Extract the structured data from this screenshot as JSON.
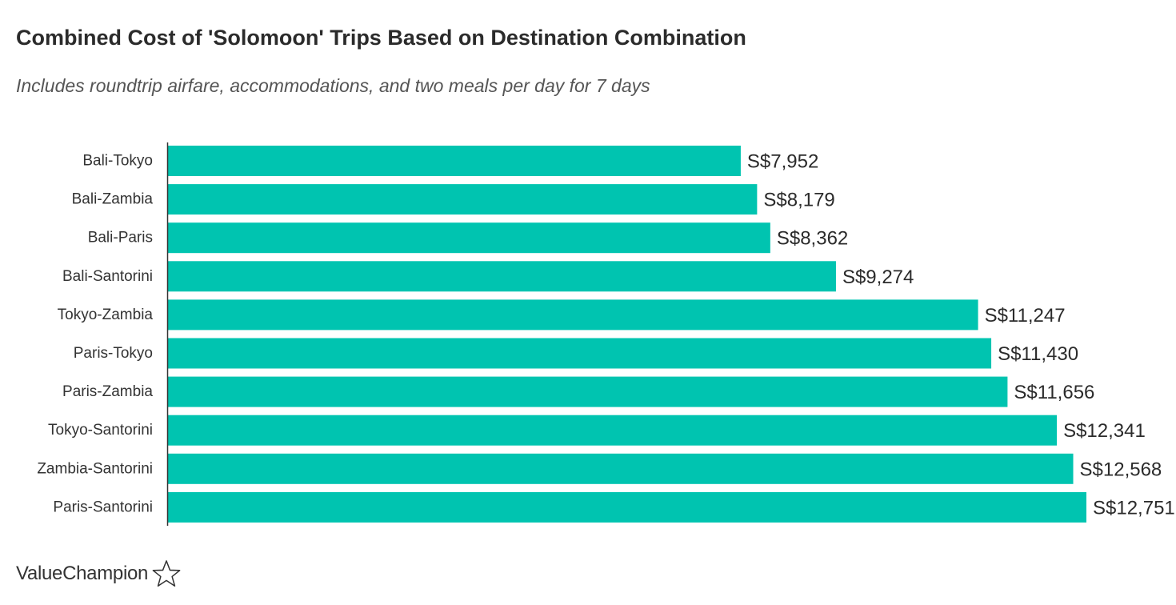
{
  "chart_data": {
    "type": "bar",
    "orientation": "horizontal",
    "title": "Combined Cost of 'Solomoon' Trips Based on Destination Combination",
    "subtitle": "Includes roundtrip airfare, accommodations, and two meals per day for 7 days",
    "categories": [
      "Bali-Tokyo",
      "Bali-Zambia",
      "Bali-Paris",
      "Bali-Santorini",
      "Tokyo-Zambia",
      "Paris-Tokyo",
      "Paris-Zambia",
      "Tokyo-Santorini",
      "Zambia-Santorini",
      "Paris-Santorini"
    ],
    "values": [
      7952,
      8179,
      8362,
      9274,
      11247,
      11430,
      11656,
      12341,
      12568,
      12751
    ],
    "value_labels": [
      "S$7,952",
      "S$8,179",
      "S$8,362",
      "S$9,274",
      "S$11,247",
      "S$11,430",
      "S$11,656",
      "S$12,341",
      "S$12,568",
      "S$12,751"
    ],
    "xlim": [
      0,
      12751
    ],
    "grid": false,
    "bar_color": "#00c4b0",
    "axis_color": "#333333"
  },
  "brand": {
    "name": "ValueChampion",
    "logo_icon": "star-outline-icon"
  }
}
